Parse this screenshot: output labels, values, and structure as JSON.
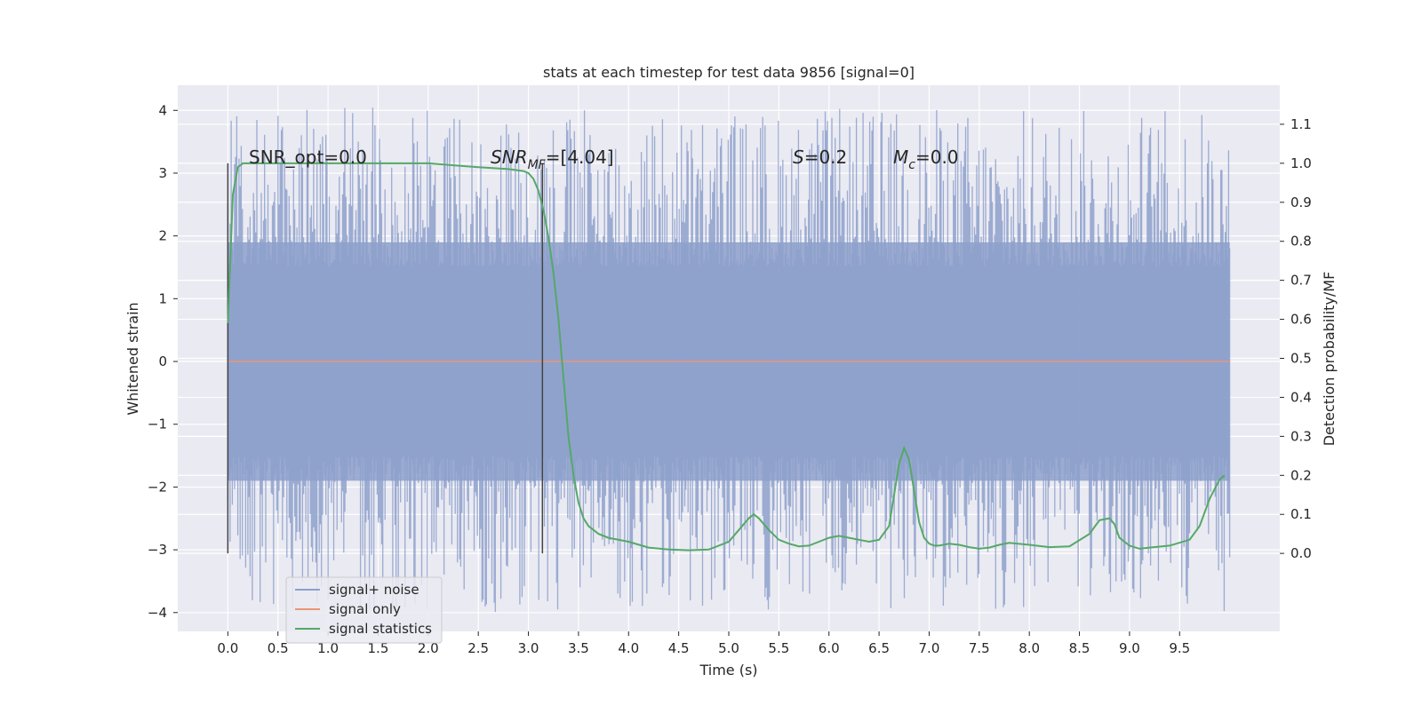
{
  "chart_data": {
    "type": "line",
    "title": "stats at each timestep for test data 9856 [signal=0]",
    "xlabel": "Time (s)",
    "ylabel_left": "Whitened strain",
    "ylabel_right": "Detection probability/MF",
    "xlim": [
      -0.5,
      10.5
    ],
    "ylim_left": [
      -4.3,
      4.4
    ],
    "ylim_right": [
      -0.2,
      1.2
    ],
    "x_ticks": [
      "0.0",
      "0.5",
      "1.0",
      "1.5",
      "2.0",
      "2.5",
      "3.0",
      "3.5",
      "4.0",
      "4.5",
      "5.0",
      "5.5",
      "6.0",
      "6.5",
      "7.0",
      "7.5",
      "8.0",
      "8.5",
      "9.0",
      "9.5"
    ],
    "y_ticks_left": [
      "4",
      "3",
      "2",
      "1",
      "0",
      "−1",
      "−2",
      "−3",
      "−4"
    ],
    "y_ticks_right": [
      "1.1",
      "1.0",
      "0.9",
      "0.8",
      "0.7",
      "0.6",
      "0.5",
      "0.4",
      "0.3",
      "0.2",
      "0.1",
      "0.0"
    ],
    "grid": true,
    "legend": {
      "placement": "lower-left",
      "entries": [
        {
          "label": "signal+ noise",
          "color": "#8da0cb"
        },
        {
          "label": "signal only",
          "color": "#e99675"
        },
        {
          "label": "signal statistics",
          "color": "#55a868"
        }
      ]
    },
    "annotations": {
      "snr_opt": "SNR_opt=0.0",
      "snr_mf_prefix": "SNR",
      "snr_mf_sub": "MF",
      "snr_mf_suffix": "=[4.04]",
      "s_prefix": "S",
      "s_suffix": "=0.2",
      "mc_prefix": "M",
      "mc_sub": "c",
      "mc_suffix": "=0.0"
    },
    "markers_x": [
      0.0,
      3.14
    ],
    "noise": {
      "x_range": [
        0.0,
        10.0
      ],
      "band": [
        -1.9,
        1.9
      ],
      "peak_max": 4.05,
      "peak_min": -4.0
    },
    "signal_only": {
      "x": [
        0.0,
        10.0
      ],
      "y": [
        0.0,
        0.0
      ]
    },
    "series": [
      {
        "name": "signal statistics",
        "color": "#55a868",
        "x": [
          0.0,
          0.05,
          0.1,
          0.15,
          0.2,
          0.3,
          0.5,
          1.0,
          1.5,
          2.0,
          2.5,
          2.8,
          2.95,
          3.0,
          3.05,
          3.1,
          3.15,
          3.2,
          3.25,
          3.3,
          3.35,
          3.4,
          3.45,
          3.5,
          3.55,
          3.6,
          3.7,
          3.8,
          4.0,
          4.2,
          4.4,
          4.6,
          4.8,
          5.0,
          5.1,
          5.2,
          5.25,
          5.3,
          5.4,
          5.5,
          5.6,
          5.7,
          5.8,
          5.9,
          6.0,
          6.1,
          6.2,
          6.3,
          6.4,
          6.5,
          6.6,
          6.65,
          6.7,
          6.75,
          6.8,
          6.85,
          6.9,
          6.95,
          7.0,
          7.05,
          7.1,
          7.2,
          7.3,
          7.4,
          7.5,
          7.6,
          7.7,
          7.8,
          8.0,
          8.2,
          8.4,
          8.6,
          8.7,
          8.8,
          8.85,
          8.9,
          9.0,
          9.1,
          9.2,
          9.4,
          9.6,
          9.7,
          9.8,
          9.9,
          9.95
        ],
        "y": [
          0.59,
          0.92,
          0.99,
          1.0,
          1.0,
          1.0,
          1.0,
          1.0,
          1.0,
          1.0,
          0.99,
          0.985,
          0.98,
          0.975,
          0.96,
          0.93,
          0.88,
          0.81,
          0.72,
          0.6,
          0.45,
          0.3,
          0.2,
          0.13,
          0.09,
          0.07,
          0.05,
          0.04,
          0.03,
          0.015,
          0.01,
          0.008,
          0.01,
          0.03,
          0.06,
          0.09,
          0.1,
          0.09,
          0.06,
          0.035,
          0.025,
          0.018,
          0.02,
          0.03,
          0.04,
          0.045,
          0.04,
          0.035,
          0.03,
          0.035,
          0.07,
          0.15,
          0.23,
          0.27,
          0.24,
          0.16,
          0.08,
          0.04,
          0.025,
          0.02,
          0.02,
          0.025,
          0.022,
          0.016,
          0.012,
          0.015,
          0.022,
          0.027,
          0.022,
          0.016,
          0.018,
          0.05,
          0.085,
          0.09,
          0.075,
          0.04,
          0.02,
          0.012,
          0.015,
          0.02,
          0.035,
          0.07,
          0.14,
          0.19,
          0.2
        ]
      }
    ]
  }
}
